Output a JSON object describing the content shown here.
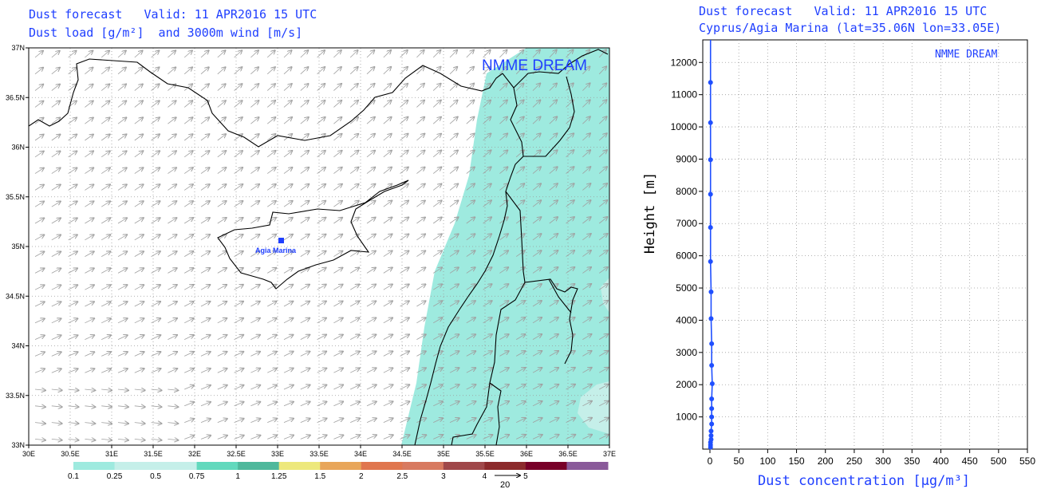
{
  "colors": {
    "header_text": "#1f3fff",
    "dust_light": "#c5efe9",
    "dust_mid": "#9eeadf",
    "wind_arrow": "#a0a0a0",
    "profile": "#1f4fff"
  },
  "map": {
    "title_line1": "Dust forecast   Valid: 11 APR2016 15 UTC",
    "title_line2": "Dust load [g/m²]  and 3000m wind [m/s]",
    "brand": "NMME DREAM",
    "station_label": "Agia Marina",
    "lon_labels": [
      "30E",
      "30.5E",
      "31E",
      "31.5E",
      "32E",
      "32.5E",
      "33E",
      "33.5E",
      "34E",
      "34.5E",
      "35E",
      "35.5E",
      "36E",
      "36.5E",
      "37E"
    ],
    "lat_labels": [
      "37N",
      "36.5N",
      "36N",
      "35.5N",
      "35N",
      "34.5N",
      "34N",
      "33.5N",
      "33N"
    ],
    "colorbar_labels": [
      "0.1",
      "0.25",
      "0.5",
      "0.75",
      "1",
      "1.25",
      "1.5",
      "2",
      "2.5",
      "3",
      "4",
      "5"
    ],
    "colorbar_colors": [
      "#9eeadf",
      "#c5efe9",
      "#c5efe9",
      "#62d9bd",
      "#4fb89c",
      "#ede87c",
      "#e8a65a",
      "#e0764e",
      "#d87a60",
      "#a0484a",
      "#8c2a2c",
      "#780028",
      "#8a5a9a"
    ],
    "wind_ref_label": "20"
  },
  "chart_data": {
    "type": "line",
    "title": "Dust forecast   Valid: 11 APR2016 15 UTC",
    "subtitle": "Cyprus/Agia Marina (lat=35.06N lon=33.05E)",
    "brand": "NMME DREAM",
    "xlabel": "Dust concentration [μg/m³]",
    "ylabel": "Height [m]",
    "xlim": [
      0,
      550
    ],
    "ylim": [
      0,
      12700
    ],
    "x_ticks": [
      0,
      50,
      100,
      150,
      200,
      250,
      300,
      350,
      400,
      450,
      500,
      550
    ],
    "y_ticks": [
      1000,
      2000,
      3000,
      4000,
      5000,
      6000,
      7000,
      8000,
      9000,
      10000,
      11000,
      12000
    ],
    "grid": true,
    "series": [
      {
        "x": [
          1,
          1,
          1,
          2,
          2,
          2,
          3,
          3,
          3,
          3,
          4,
          3,
          3,
          2,
          2,
          1,
          1,
          1,
          1,
          1,
          1
        ],
        "y": [
          60,
          130,
          210,
          300,
          420,
          560,
          780,
          1000,
          1260,
          1560,
          2030,
          2600,
          3270,
          4050,
          4880,
          5820,
          6880,
          7910,
          8980,
          10130,
          11380
        ]
      }
    ]
  }
}
